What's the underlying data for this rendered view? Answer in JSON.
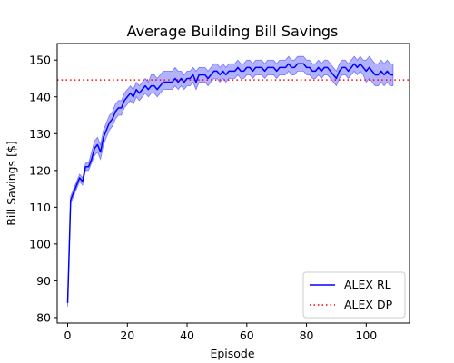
{
  "chart_data": {
    "type": "line",
    "title": "Average Building Bill Savings",
    "xlabel": "Episode",
    "ylabel": "Bill Savings [$]",
    "xlim": [
      -3.5,
      114.5
    ],
    "ylim": [
      78.5,
      154.5
    ],
    "xticks": [
      0,
      20,
      40,
      60,
      80,
      100
    ],
    "yticks": [
      80,
      90,
      100,
      110,
      120,
      130,
      140,
      150
    ],
    "grid": false,
    "legend_position": "lower-right",
    "series": [
      {
        "name": "ALEX RL",
        "color": "#0000ff",
        "band_color": "#0000ff",
        "band_opacity": 0.3,
        "x": [
          0,
          1,
          2,
          3,
          4,
          5,
          6,
          7,
          8,
          9,
          10,
          11,
          12,
          13,
          14,
          15,
          16,
          17,
          18,
          19,
          20,
          21,
          22,
          23,
          24,
          25,
          26,
          27,
          28,
          29,
          30,
          31,
          32,
          33,
          34,
          35,
          36,
          37,
          38,
          39,
          40,
          41,
          42,
          43,
          44,
          45,
          46,
          47,
          48,
          49,
          50,
          51,
          52,
          53,
          54,
          55,
          56,
          57,
          58,
          59,
          60,
          61,
          62,
          63,
          64,
          65,
          66,
          67,
          68,
          69,
          70,
          71,
          72,
          73,
          74,
          75,
          76,
          77,
          78,
          79,
          80,
          81,
          82,
          83,
          84,
          85,
          86,
          87,
          88,
          89,
          90,
          91,
          92,
          93,
          94,
          95,
          96,
          97,
          98,
          99,
          100,
          101,
          102,
          103,
          104,
          105,
          106,
          107,
          108,
          109
        ],
        "y": [
          84,
          112,
          114,
          116,
          118,
          117,
          121,
          121,
          123,
          126,
          127,
          125,
          129,
          131,
          133,
          134,
          136,
          137,
          137,
          139,
          140,
          141,
          140,
          142,
          141,
          142,
          143,
          142,
          143,
          143,
          142,
          143,
          144,
          144,
          144,
          144,
          145,
          144,
          145,
          144,
          145,
          145,
          146,
          144,
          146,
          146,
          146,
          145,
          146,
          147,
          147,
          146,
          147,
          146,
          147,
          147,
          147,
          148,
          147,
          147,
          148,
          148,
          147,
          148,
          148,
          148,
          147,
          148,
          148,
          148,
          147,
          148,
          148,
          148,
          149,
          148,
          148,
          149,
          149,
          149,
          148,
          148,
          147,
          147,
          148,
          147,
          148,
          148,
          147,
          146,
          145,
          147,
          148,
          148,
          147,
          148,
          149,
          148,
          149,
          148,
          147,
          148,
          147,
          146,
          146,
          147,
          146,
          147,
          146,
          146
        ],
        "lower": [
          83,
          111,
          113,
          115,
          117,
          116,
          120,
          120,
          122,
          124,
          125,
          123,
          127,
          129,
          131,
          132,
          134,
          135,
          135,
          137,
          138,
          139,
          138,
          140,
          139,
          140,
          141,
          140,
          141,
          141,
          140,
          141,
          142,
          142,
          142,
          142,
          143,
          142,
          143,
          142,
          143,
          143,
          144,
          142,
          144,
          144,
          144,
          143,
          144,
          145,
          145,
          144,
          145,
          144,
          145,
          145,
          145,
          146,
          145,
          145,
          146,
          146,
          145,
          146,
          146,
          146,
          145,
          146,
          146,
          146,
          145,
          146,
          146,
          146,
          147,
          146,
          146,
          147,
          147,
          147,
          146,
          146,
          145,
          145,
          146,
          145,
          146,
          146,
          145,
          144,
          143,
          145,
          146,
          146,
          145,
          146,
          147,
          146,
          147,
          146,
          144,
          145,
          144,
          143,
          143,
          144,
          143,
          144,
          143,
          143
        ],
        "upper": [
          85,
          113,
          115,
          117,
          119,
          118,
          122,
          122,
          125,
          128,
          129,
          127,
          131,
          133,
          135,
          136,
          138,
          139,
          139,
          141,
          142,
          143,
          142,
          144,
          143,
          144,
          145,
          144,
          146,
          146,
          145,
          146,
          147,
          147,
          147,
          147,
          148,
          147,
          147,
          146,
          147,
          147,
          148,
          147,
          148,
          148,
          148,
          147,
          148,
          149,
          149,
          148,
          149,
          148,
          149,
          149,
          149,
          150,
          149,
          149,
          150,
          150,
          149,
          150,
          150,
          150,
          149,
          150,
          150,
          150,
          149,
          150,
          150,
          150,
          151,
          150,
          150,
          151,
          151,
          151,
          150,
          150,
          149,
          149,
          150,
          149,
          150,
          150,
          149,
          148,
          147,
          149,
          150,
          150,
          149,
          150,
          151,
          150,
          151,
          150,
          150,
          151,
          150,
          149,
          149,
          150,
          149,
          150,
          149,
          149
        ]
      },
      {
        "name": "ALEX DP",
        "color": "#ff0000",
        "style": "dotted",
        "y_constant": 144.6
      }
    ]
  }
}
